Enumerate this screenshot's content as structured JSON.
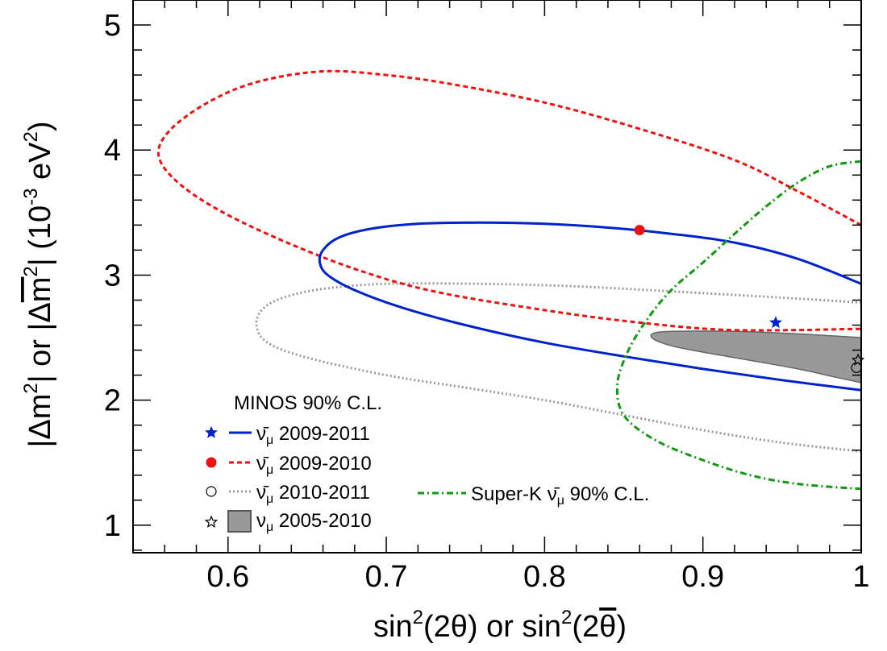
{
  "chart_data": {
    "type": "line",
    "subtype": "contour",
    "title": "",
    "xlabel": "sin²(2θ) or sin²(2θ̄)",
    "ylabel": "|Δm²| or |Δm̄²| (10⁻³ eV²)",
    "xlim": [
      0.54,
      1.0
    ],
    "ylim": [
      0.78,
      5.2
    ],
    "xticks": [
      0.6,
      0.7,
      0.8,
      0.9,
      1.0
    ],
    "xtick_labels": [
      "0.6",
      "0.7",
      "0.8",
      "0.9",
      "1"
    ],
    "yticks": [
      1,
      2,
      3,
      4,
      5
    ],
    "ytick_labels": [
      "1",
      "2",
      "3",
      "4",
      "5"
    ],
    "legend_title": "MINOS 90% C.L.",
    "legend_position": "bottom-left",
    "series": [
      {
        "name": "ν̄μ 2009-2011",
        "label_main": "ν̄",
        "label_sub": "μ",
        "label_rest": " 2009-2011",
        "style": "solid",
        "color": "#0022cc",
        "best_fit_marker": "filled-star",
        "best_fit": [
          0.946,
          2.62
        ],
        "contour": [
          [
            1.0,
            2.93
          ],
          [
            0.96,
            3.13
          ],
          [
            0.92,
            3.26
          ],
          [
            0.88,
            3.33
          ],
          [
            0.84,
            3.38
          ],
          [
            0.8,
            3.41
          ],
          [
            0.76,
            3.42
          ],
          [
            0.72,
            3.41
          ],
          [
            0.69,
            3.37
          ],
          [
            0.67,
            3.3
          ],
          [
            0.66,
            3.2
          ],
          [
            0.658,
            3.1
          ],
          [
            0.663,
            3.0
          ],
          [
            0.68,
            2.88
          ],
          [
            0.71,
            2.74
          ],
          [
            0.75,
            2.6
          ],
          [
            0.8,
            2.46
          ],
          [
            0.85,
            2.35
          ],
          [
            0.9,
            2.25
          ],
          [
            0.95,
            2.16
          ],
          [
            1.0,
            2.08
          ]
        ]
      },
      {
        "name": "ν̄μ 2009-2010",
        "label_main": "ν̄",
        "label_sub": "μ",
        "label_rest": " 2009-2010",
        "style": "dashed",
        "color": "#ee1111",
        "best_fit_marker": "filled-circle",
        "best_fit": [
          0.86,
          3.36
        ],
        "contour": [
          [
            1.0,
            3.4
          ],
          [
            0.96,
            3.67
          ],
          [
            0.92,
            3.92
          ],
          [
            0.86,
            4.17
          ],
          [
            0.8,
            4.38
          ],
          [
            0.74,
            4.53
          ],
          [
            0.7,
            4.6
          ],
          [
            0.66,
            4.63
          ],
          [
            0.62,
            4.55
          ],
          [
            0.59,
            4.4
          ],
          [
            0.565,
            4.18
          ],
          [
            0.556,
            3.98
          ],
          [
            0.565,
            3.78
          ],
          [
            0.59,
            3.55
          ],
          [
            0.63,
            3.3
          ],
          [
            0.68,
            3.05
          ],
          [
            0.73,
            2.87
          ],
          [
            0.8,
            2.72
          ],
          [
            0.86,
            2.62
          ],
          [
            0.92,
            2.56
          ],
          [
            1.0,
            2.57
          ]
        ]
      },
      {
        "name": "ν̄μ 2010-2011",
        "label_main": "ν̄",
        "label_sub": "μ",
        "label_rest": " 2010-2011",
        "style": "dotted",
        "color": "#999999",
        "best_fit_marker": "open-circle",
        "best_fit": [
          0.997,
          2.26
        ],
        "contour": [
          [
            1.0,
            2.78
          ],
          [
            0.95,
            2.82
          ],
          [
            0.88,
            2.87
          ],
          [
            0.82,
            2.91
          ],
          [
            0.76,
            2.93
          ],
          [
            0.7,
            2.93
          ],
          [
            0.66,
            2.89
          ],
          [
            0.635,
            2.82
          ],
          [
            0.622,
            2.73
          ],
          [
            0.618,
            2.6
          ],
          [
            0.625,
            2.46
          ],
          [
            0.65,
            2.34
          ],
          [
            0.7,
            2.2
          ],
          [
            0.75,
            2.1
          ],
          [
            0.8,
            2.0
          ],
          [
            0.85,
            1.88
          ],
          [
            0.9,
            1.76
          ],
          [
            0.95,
            1.66
          ],
          [
            1.0,
            1.59
          ]
        ]
      },
      {
        "name": "νμ 2005-2010",
        "label_main": "ν",
        "label_sub": "μ",
        "label_rest": " 2005-2010",
        "style": "filled",
        "color": "#999999",
        "best_fit_marker": "open-star",
        "best_fit": [
          0.998,
          2.32
        ],
        "contour": [
          [
            1.0,
            2.5
          ],
          [
            0.96,
            2.53
          ],
          [
            0.92,
            2.55
          ],
          [
            0.88,
            2.55
          ],
          [
            0.868,
            2.53
          ],
          [
            0.87,
            2.48
          ],
          [
            0.885,
            2.42
          ],
          [
            0.92,
            2.34
          ],
          [
            0.96,
            2.25
          ],
          [
            0.985,
            2.18
          ],
          [
            1.0,
            2.14
          ]
        ]
      },
      {
        "name": "Super-K ν̄μ 90% C.L.",
        "label_main": "Super-K ν̄",
        "label_sub": "μ",
        "label_rest": " 90% C.L.",
        "style": "dash-dot",
        "color": "#119911",
        "contour": [
          [
            1.0,
            3.91
          ],
          [
            0.98,
            3.87
          ],
          [
            0.96,
            3.74
          ],
          [
            0.94,
            3.55
          ],
          [
            0.92,
            3.33
          ],
          [
            0.9,
            3.1
          ],
          [
            0.88,
            2.88
          ],
          [
            0.865,
            2.65
          ],
          [
            0.853,
            2.4
          ],
          [
            0.846,
            2.13
          ],
          [
            0.85,
            1.88
          ],
          [
            0.87,
            1.68
          ],
          [
            0.9,
            1.52
          ],
          [
            0.93,
            1.4
          ],
          [
            0.96,
            1.33
          ],
          [
            1.0,
            1.29
          ]
        ]
      }
    ]
  }
}
